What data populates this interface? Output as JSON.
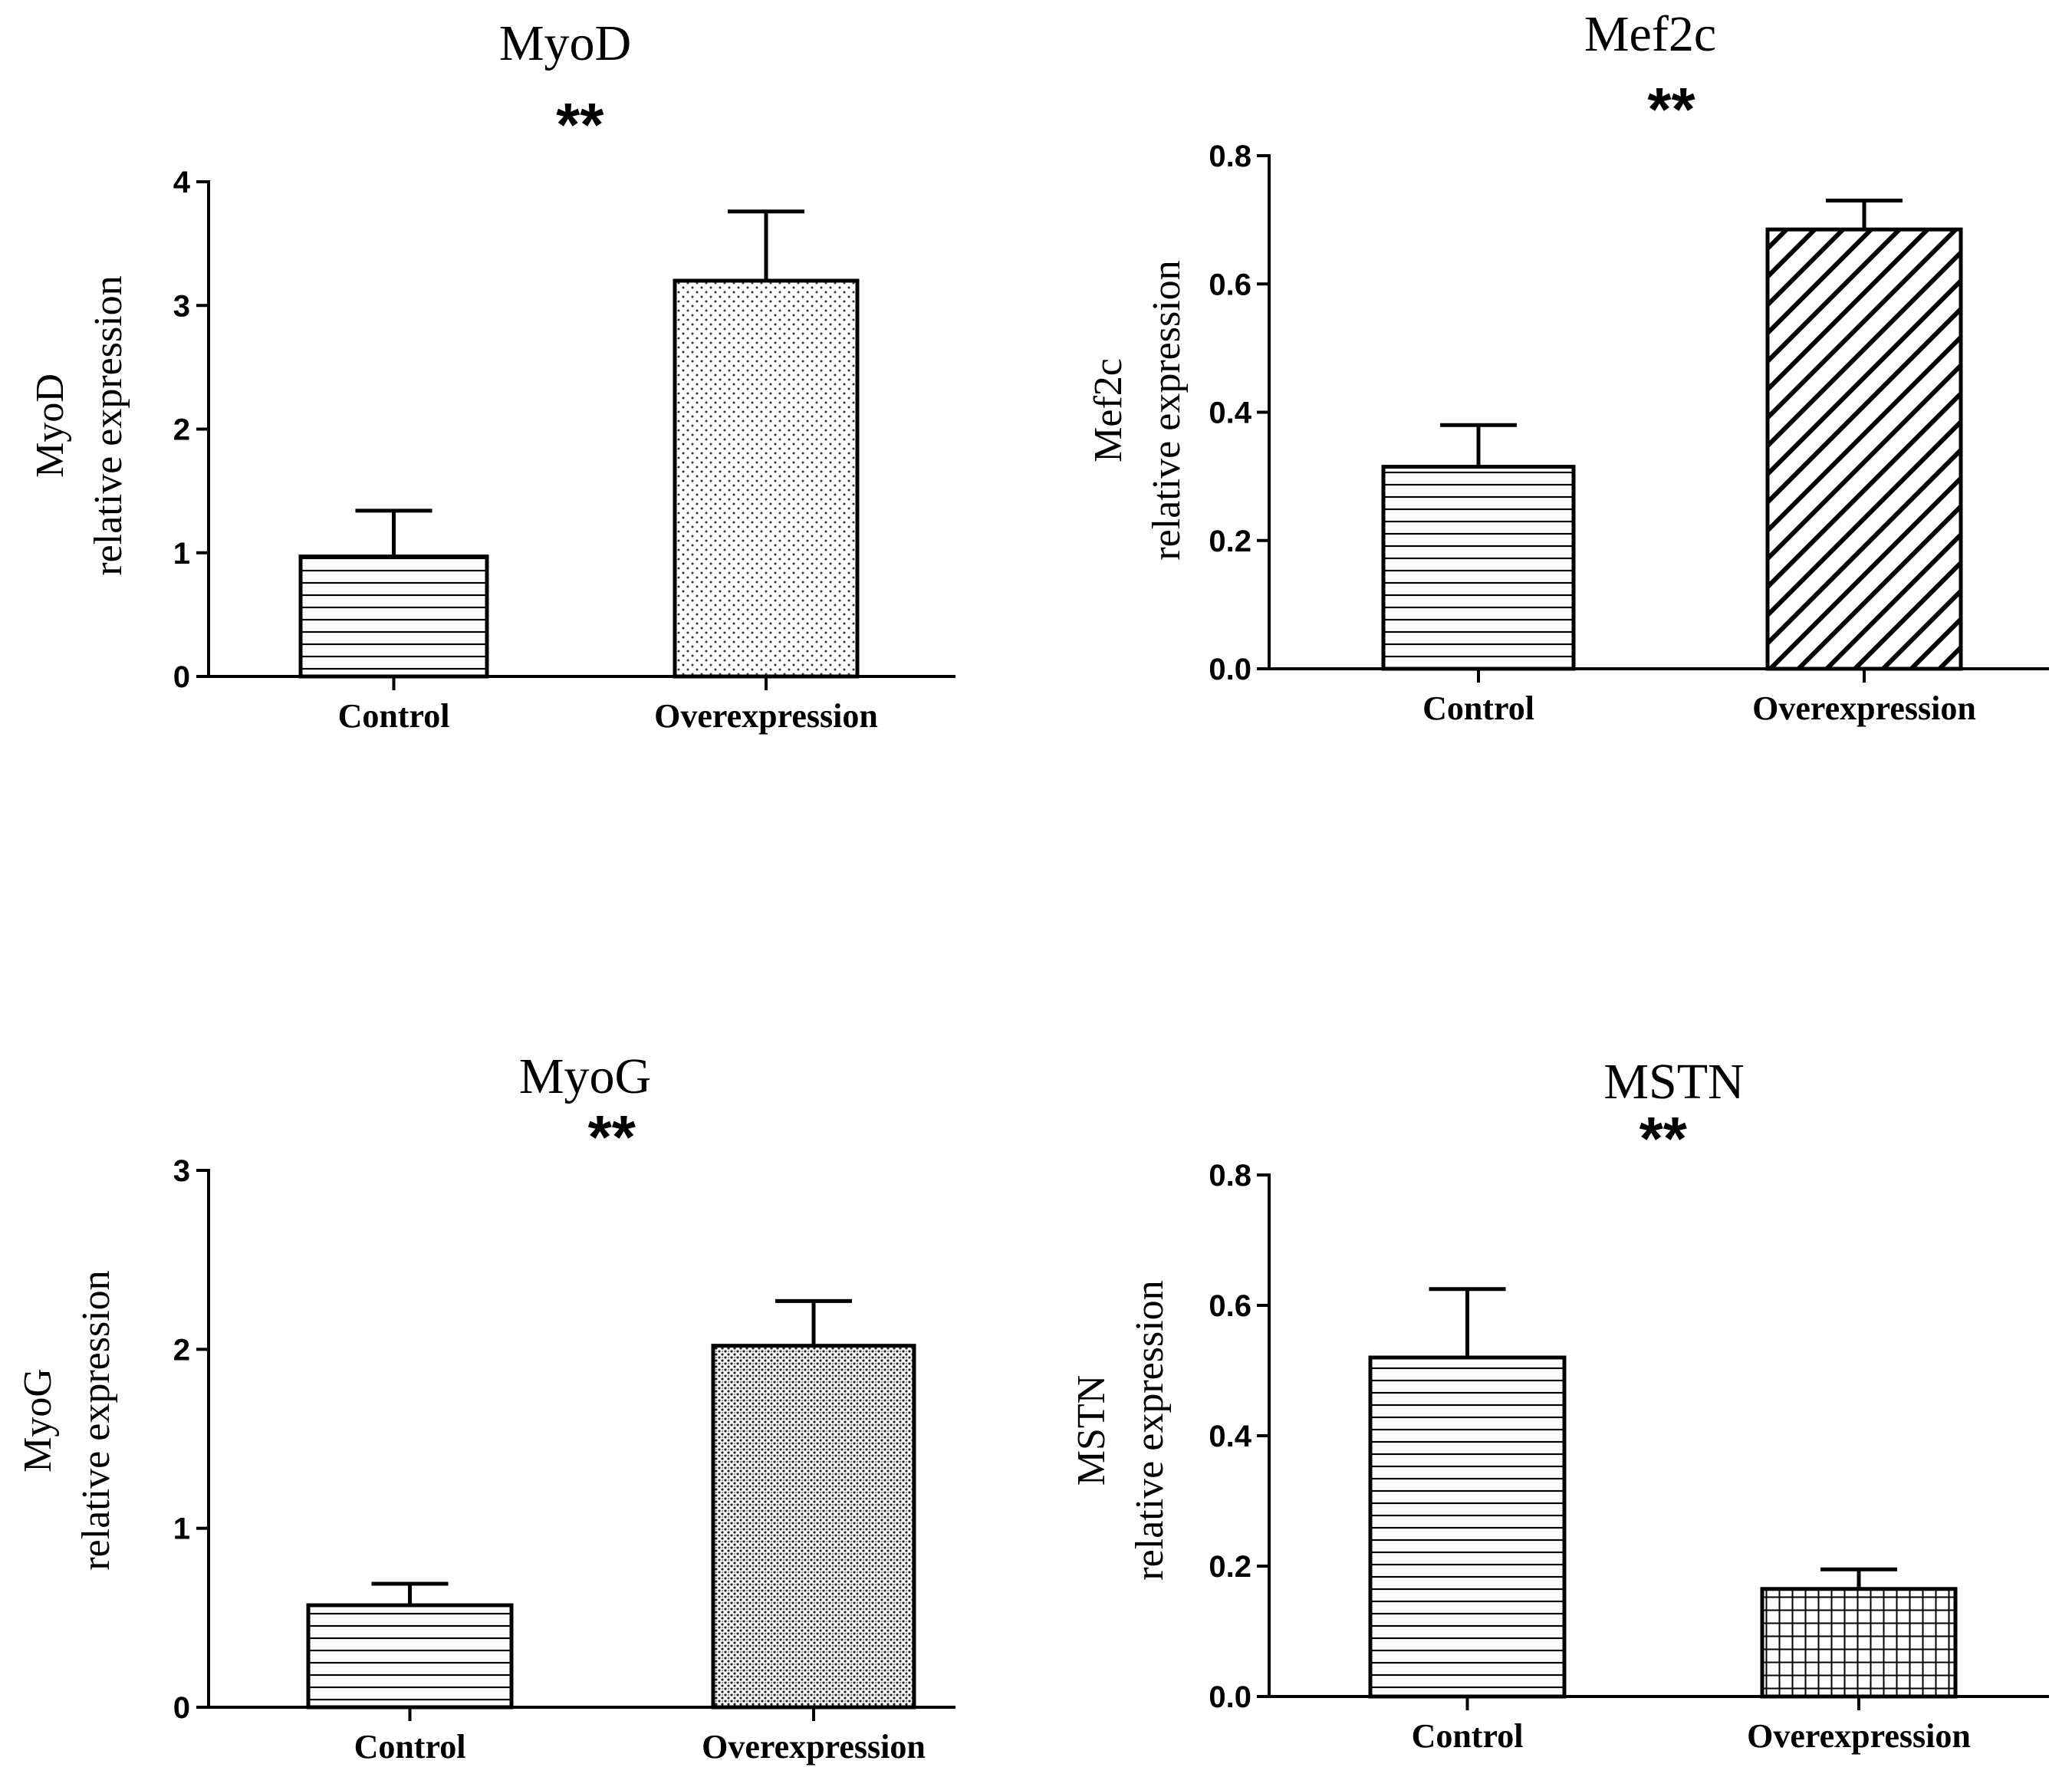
{
  "chart_data": [
    {
      "type": "bar",
      "title": "MyoD",
      "ylabel": [
        "MyoD",
        "relative expression"
      ],
      "categories": [
        "Control",
        "Overexpression"
      ],
      "values": [
        0.97,
        3.2
      ],
      "errors": [
        0.37,
        0.56
      ],
      "ylim": [
        0,
        4
      ],
      "yticks": [
        "0",
        "1",
        "2",
        "3",
        "4"
      ],
      "patterns": [
        "hlines",
        "dots-light"
      ],
      "significance": "**"
    },
    {
      "type": "bar",
      "title": "Mef2c",
      "ylabel": [
        "Mef2c",
        "relative expression"
      ],
      "categories": [
        "Control",
        "Overexpression"
      ],
      "values": [
        0.315,
        0.685
      ],
      "errors": [
        0.065,
        0.045
      ],
      "ylim": [
        0,
        0.8
      ],
      "yticks": [
        "0.0",
        "0.2",
        "0.4",
        "0.6",
        "0.8"
      ],
      "patterns": [
        "hlines",
        "diagonal"
      ],
      "significance": "**"
    },
    {
      "type": "bar",
      "title": "MyoG",
      "ylabel": [
        "MyoG",
        "relative expression"
      ],
      "categories": [
        "Control",
        "Overexpression"
      ],
      "values": [
        0.57,
        2.02
      ],
      "errors": [
        0.12,
        0.25
      ],
      "ylim": [
        0,
        3
      ],
      "yticks": [
        "0",
        "1",
        "2",
        "3"
      ],
      "patterns": [
        "hlines",
        "dots-dense"
      ],
      "significance": "**"
    },
    {
      "type": "bar",
      "title": "MSTN",
      "ylabel": [
        "MSTN",
        "relative expression"
      ],
      "categories": [
        "Control",
        "Overexpression"
      ],
      "values": [
        0.52,
        0.165
      ],
      "errors": [
        0.105,
        0.03
      ],
      "ylim": [
        0,
        0.8
      ],
      "yticks": [
        "0.0",
        "0.2",
        "0.4",
        "0.6",
        "0.8"
      ],
      "patterns": [
        "hlines",
        "grid"
      ],
      "significance": "**"
    }
  ]
}
